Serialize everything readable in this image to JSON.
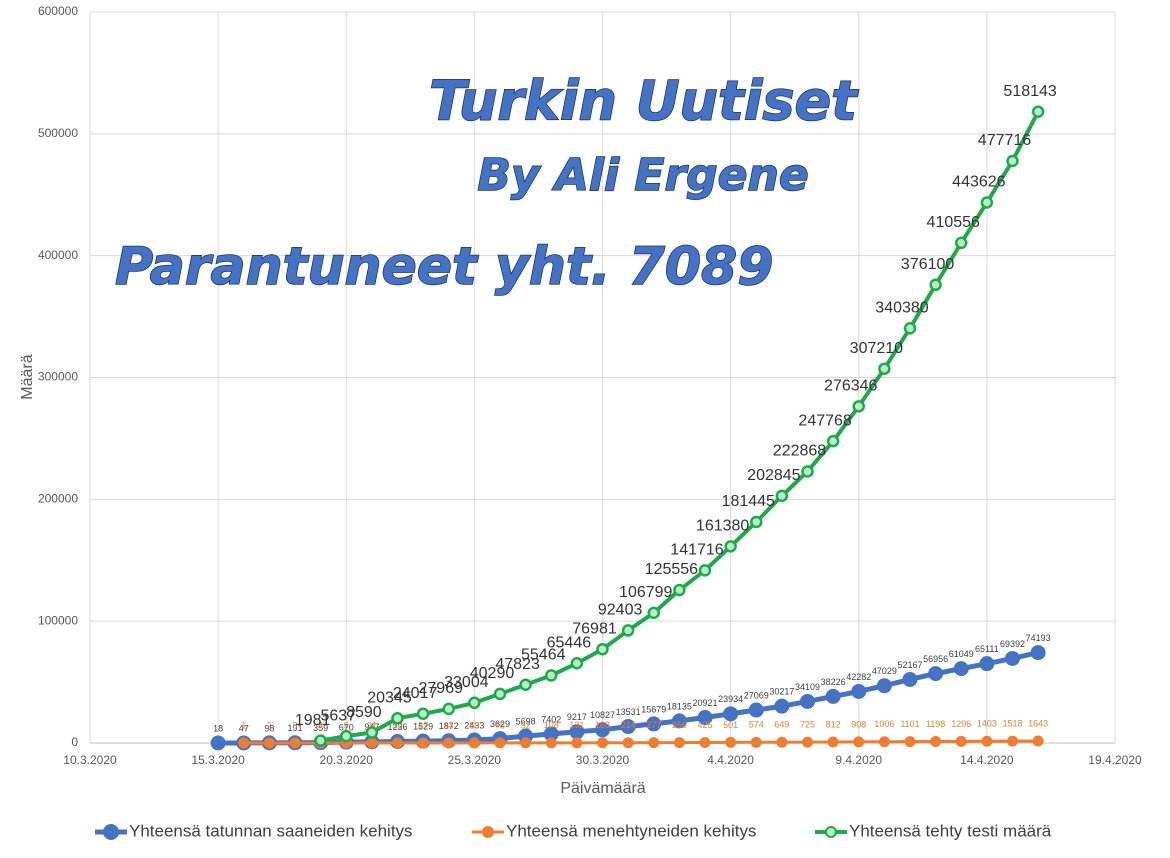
{
  "chart_data": {
    "type": "line",
    "annotations": [
      "Turkin Uutiset",
      "By Ali Ergene",
      "Parantuneet yht. 7089"
    ],
    "xlabel": "Päivämäärä",
    "ylabel": "Määrä",
    "xlim": [
      "10.3.2020",
      "19.4.2020"
    ],
    "xticks": [
      "10.3.2020",
      "15.3.2020",
      "20.3.2020",
      "25.3.2020",
      "30.3.2020",
      "4.4.2020",
      "9.4.2020",
      "14.4.2020",
      "19.4.2020"
    ],
    "ylim": [
      0,
      600000
    ],
    "yticks": [
      0,
      100000,
      200000,
      300000,
      400000,
      500000,
      600000
    ],
    "grid": true,
    "legend": "bottom",
    "series": [
      {
        "name": "Yhteensä tatunnan saaneiden kehitys",
        "color": "#4472c4",
        "x": [
          "15.3.2020",
          "16.3.2020",
          "17.3.2020",
          "18.3.2020",
          "19.3.2020",
          "20.3.2020",
          "21.3.2020",
          "22.3.2020",
          "23.3.2020",
          "24.3.2020",
          "25.3.2020",
          "26.3.2020",
          "27.3.2020",
          "28.3.2020",
          "29.3.2020",
          "30.3.2020",
          "31.3.2020",
          "1.4.2020",
          "2.4.2020",
          "3.4.2020",
          "4.4.2020",
          "5.4.2020",
          "6.4.2020",
          "7.4.2020",
          "8.4.2020",
          "9.4.2020",
          "10.4.2020",
          "11.4.2020",
          "12.4.2020",
          "13.4.2020",
          "14.4.2020",
          "15.4.2020",
          "16.4.2020"
        ],
        "values": [
          18,
          47,
          98,
          191,
          359,
          670,
          947,
          1236,
          1529,
          1872,
          2433,
          3629,
          5698,
          7402,
          9217,
          10827,
          13531,
          15679,
          18135,
          20921,
          23934,
          27069,
          30217,
          34109,
          38226,
          42282,
          47029,
          52167,
          56956,
          61049,
          65111,
          69392,
          74193
        ]
      },
      {
        "name": "Yhteensä menehtyneiden kehitys",
        "color": "#ed7d31",
        "x": [
          "16.3.2020",
          "17.3.2020",
          "18.3.2020",
          "19.3.2020",
          "20.3.2020",
          "21.3.2020",
          "22.3.2020",
          "23.3.2020",
          "24.3.2020",
          "25.3.2020",
          "26.3.2020",
          "27.3.2020",
          "28.3.2020",
          "29.3.2020",
          "30.3.2020",
          "31.3.2020",
          "1.4.2020",
          "2.4.2020",
          "3.4.2020",
          "4.4.2020",
          "5.4.2020",
          "6.4.2020",
          "7.4.2020",
          "8.4.2020",
          "9.4.2020",
          "10.4.2020",
          "11.4.2020",
          "12.4.2020",
          "13.4.2020",
          "14.4.2020",
          "15.4.2020",
          "16.4.2020"
        ],
        "values": [
          1,
          2,
          3,
          4,
          9,
          21,
          30,
          37,
          44,
          59,
          75,
          92,
          108,
          131,
          168,
          214,
          277,
          356,
          425,
          501,
          574,
          649,
          725,
          812,
          908,
          1006,
          1101,
          1198,
          1296,
          1403,
          1518,
          1643
        ]
      },
      {
        "name": "Yhteensä tehty testi määrä",
        "color": "#1faa4a",
        "x": [
          "19.3.2020",
          "20.3.2020",
          "21.3.2020",
          "22.3.2020",
          "23.3.2020",
          "24.3.2020",
          "25.3.2020",
          "26.3.2020",
          "27.3.2020",
          "28.3.2020",
          "29.3.2020",
          "30.3.2020",
          "31.3.2020",
          "1.4.2020",
          "2.4.2020",
          "3.4.2020",
          "4.4.2020",
          "5.4.2020",
          "6.4.2020",
          "7.4.2020",
          "8.4.2020",
          "9.4.2020",
          "10.4.2020",
          "11.4.2020",
          "12.4.2020",
          "13.4.2020",
          "14.4.2020",
          "15.4.2020",
          "16.4.2020"
        ],
        "values": [
          1981,
          5637,
          8590,
          20345,
          24017,
          27969,
          33004,
          40290,
          47823,
          55464,
          65446,
          76981,
          92403,
          106799,
          125556,
          141716,
          161380,
          181445,
          202845,
          222868,
          247768,
          276346,
          307210,
          340380,
          376100,
          410556,
          443626,
          477716,
          518143
        ]
      }
    ]
  }
}
